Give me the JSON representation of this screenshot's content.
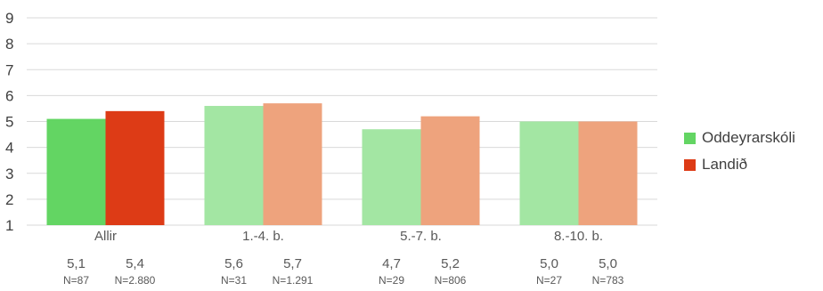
{
  "chart_data": {
    "type": "bar",
    "categories": [
      "Allir",
      "1.-4. b.",
      "5.-7. b.",
      "8.-10. b."
    ],
    "series": [
      {
        "name": "Oddeyrarskóli",
        "values": [
          5.1,
          5.6,
          4.7,
          5.0
        ],
        "value_labels": [
          "5,1",
          "5,6",
          "4,7",
          "5,0"
        ],
        "n_labels": [
          "N=87",
          "N=31",
          "N=29",
          "N=27"
        ],
        "colors": [
          "#63d563",
          "#a3e6a3",
          "#a3e6a3",
          "#a3e6a3"
        ]
      },
      {
        "name": "Landið",
        "values": [
          5.4,
          5.7,
          5.2,
          5.0
        ],
        "value_labels": [
          "5,4",
          "5,7",
          "5,2",
          "5,0"
        ],
        "n_labels": [
          "N=2.880",
          "N=1.291",
          "N=806",
          "N=783"
        ],
        "colors": [
          "#dd3b16",
          "#eea37d",
          "#eea37d",
          "#eea37d"
        ]
      }
    ],
    "ylim": [
      1,
      9
    ],
    "yticks": [
      "1",
      "2",
      "3",
      "4",
      "5",
      "6",
      "7",
      "8",
      "9"
    ],
    "grid": true,
    "legend_position": "right"
  },
  "legend": {
    "items": [
      {
        "label": "Oddeyrarskóli",
        "color": "#63d563"
      },
      {
        "label": "Landið",
        "color": "#dd3b16"
      }
    ]
  },
  "colors": {
    "grid": "#d9d9d9",
    "text": "#404040",
    "label_text": "#595959"
  }
}
